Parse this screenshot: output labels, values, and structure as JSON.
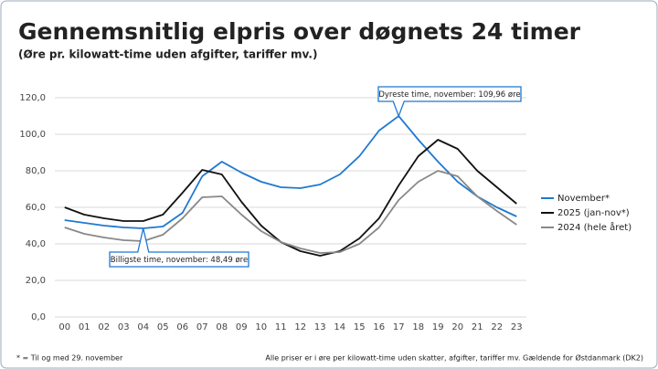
{
  "chart_data": {
    "type": "line",
    "title": "Gennemsnitlig elpris over døgnets 24 timer",
    "subtitle": "(Øre pr. kilowatt-time uden afgifter, tariffer mv.)",
    "categories": [
      "00",
      "01",
      "02",
      "03",
      "04",
      "05",
      "06",
      "07",
      "08",
      "09",
      "10",
      "11",
      "12",
      "13",
      "14",
      "15",
      "16",
      "17",
      "18",
      "19",
      "20",
      "21",
      "22",
      "23"
    ],
    "series": [
      {
        "name": "November*",
        "color": "#1f78d1",
        "values": [
          53,
          51.5,
          50,
          49,
          48.49,
          49.5,
          57,
          77,
          85,
          79,
          74,
          71,
          70.5,
          72.5,
          78,
          88,
          102,
          109.96,
          97,
          85,
          74,
          66,
          60,
          55
        ]
      },
      {
        "name": "2025 (jan-nov*)",
        "color": "#111111",
        "values": [
          60,
          56,
          54,
          52.5,
          52.5,
          56,
          68,
          80.5,
          78,
          63,
          50,
          41,
          36,
          33.5,
          36,
          43,
          54,
          72,
          88,
          97,
          92,
          80,
          71,
          62
        ]
      },
      {
        "name": "2024 (hele året)",
        "color": "#888888",
        "values": [
          49,
          45.5,
          43.5,
          42,
          41.5,
          45,
          54,
          65.5,
          66,
          56,
          47,
          41,
          37.5,
          35,
          35.5,
          40,
          49,
          64,
          74,
          80,
          77,
          66,
          58,
          50.5
        ]
      }
    ],
    "ylim": [
      0,
      120
    ],
    "yticks": [
      {
        "value": 0,
        "label": "0,0"
      },
      {
        "value": 20,
        "label": "20,0"
      },
      {
        "value": 40,
        "label": "40,0"
      },
      {
        "value": 60,
        "label": "60,0"
      },
      {
        "value": 80,
        "label": "80,0"
      },
      {
        "value": 100,
        "label": "100,0"
      },
      {
        "value": 120,
        "label": "120,0"
      }
    ],
    "grid": true,
    "legend": "right",
    "annotations": [
      "Dyreste time, november: 109,96 øre",
      "Billigste time, november: 48,49 øre"
    ],
    "footnotes": [
      "* = Til og med 29. november",
      "Alle priser er i øre per kilowatt-time uden skatter, afgifter, tariffer mv. Gældende for Østdanmark (DK2)"
    ]
  }
}
